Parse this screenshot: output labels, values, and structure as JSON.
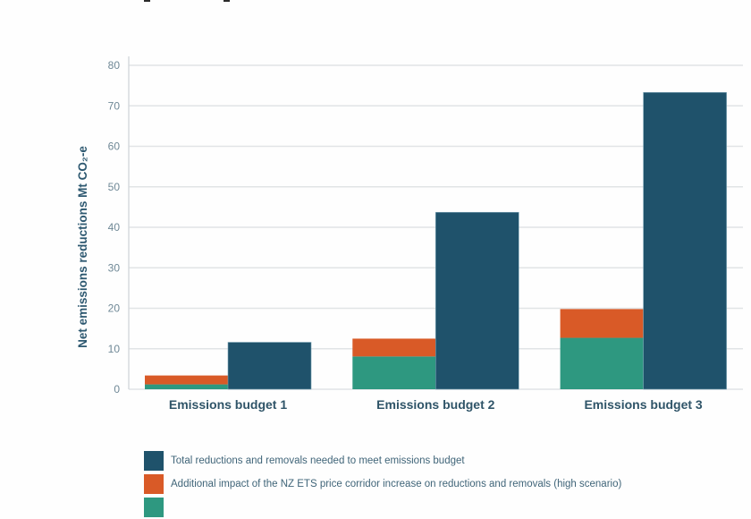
{
  "chart_data": {
    "type": "bar",
    "stacked_partial": true,
    "title": "",
    "xlabel": "",
    "ylabel": "Net emissions reductions Mt CO₂-e",
    "ylim": [
      0,
      80
    ],
    "yticks": [
      0,
      10,
      20,
      30,
      40,
      50,
      60,
      70,
      80
    ],
    "grid": true,
    "categories": [
      "Emissions budget 1",
      "Emissions budget 2",
      "Emissions budget 3"
    ],
    "series": [
      {
        "name": "",
        "key": "base",
        "color": "#2e9880",
        "stack": "impact",
        "values": [
          1.2,
          8.1,
          12.7
        ]
      },
      {
        "name": "Additional impact of the NZ ETS price corridor increase on reductions and removals (high scenario)",
        "key": "additional",
        "color": "#d95a27",
        "stack": "impact",
        "values": [
          2.2,
          4.4,
          7.1
        ]
      },
      {
        "name": "Total reductions and removals needed to meet emissions budget",
        "key": "total",
        "color": "#1f526b",
        "stack": "total",
        "values": [
          11.6,
          43.7,
          73.3
        ]
      }
    ],
    "legend_position": "bottom-left"
  },
  "legend": [
    {
      "label": "Total reductions and removals needed to meet emissions budget",
      "color": "#1f526b"
    },
    {
      "label": "Additional impact of the NZ ETS price corridor increase on reductions and removals (high scenario)",
      "color": "#d95a27"
    },
    {
      "label": "",
      "color": "#2e9880"
    }
  ],
  "colors": {
    "grid": "#e1e4e6",
    "axis": "#d6dadd"
  }
}
